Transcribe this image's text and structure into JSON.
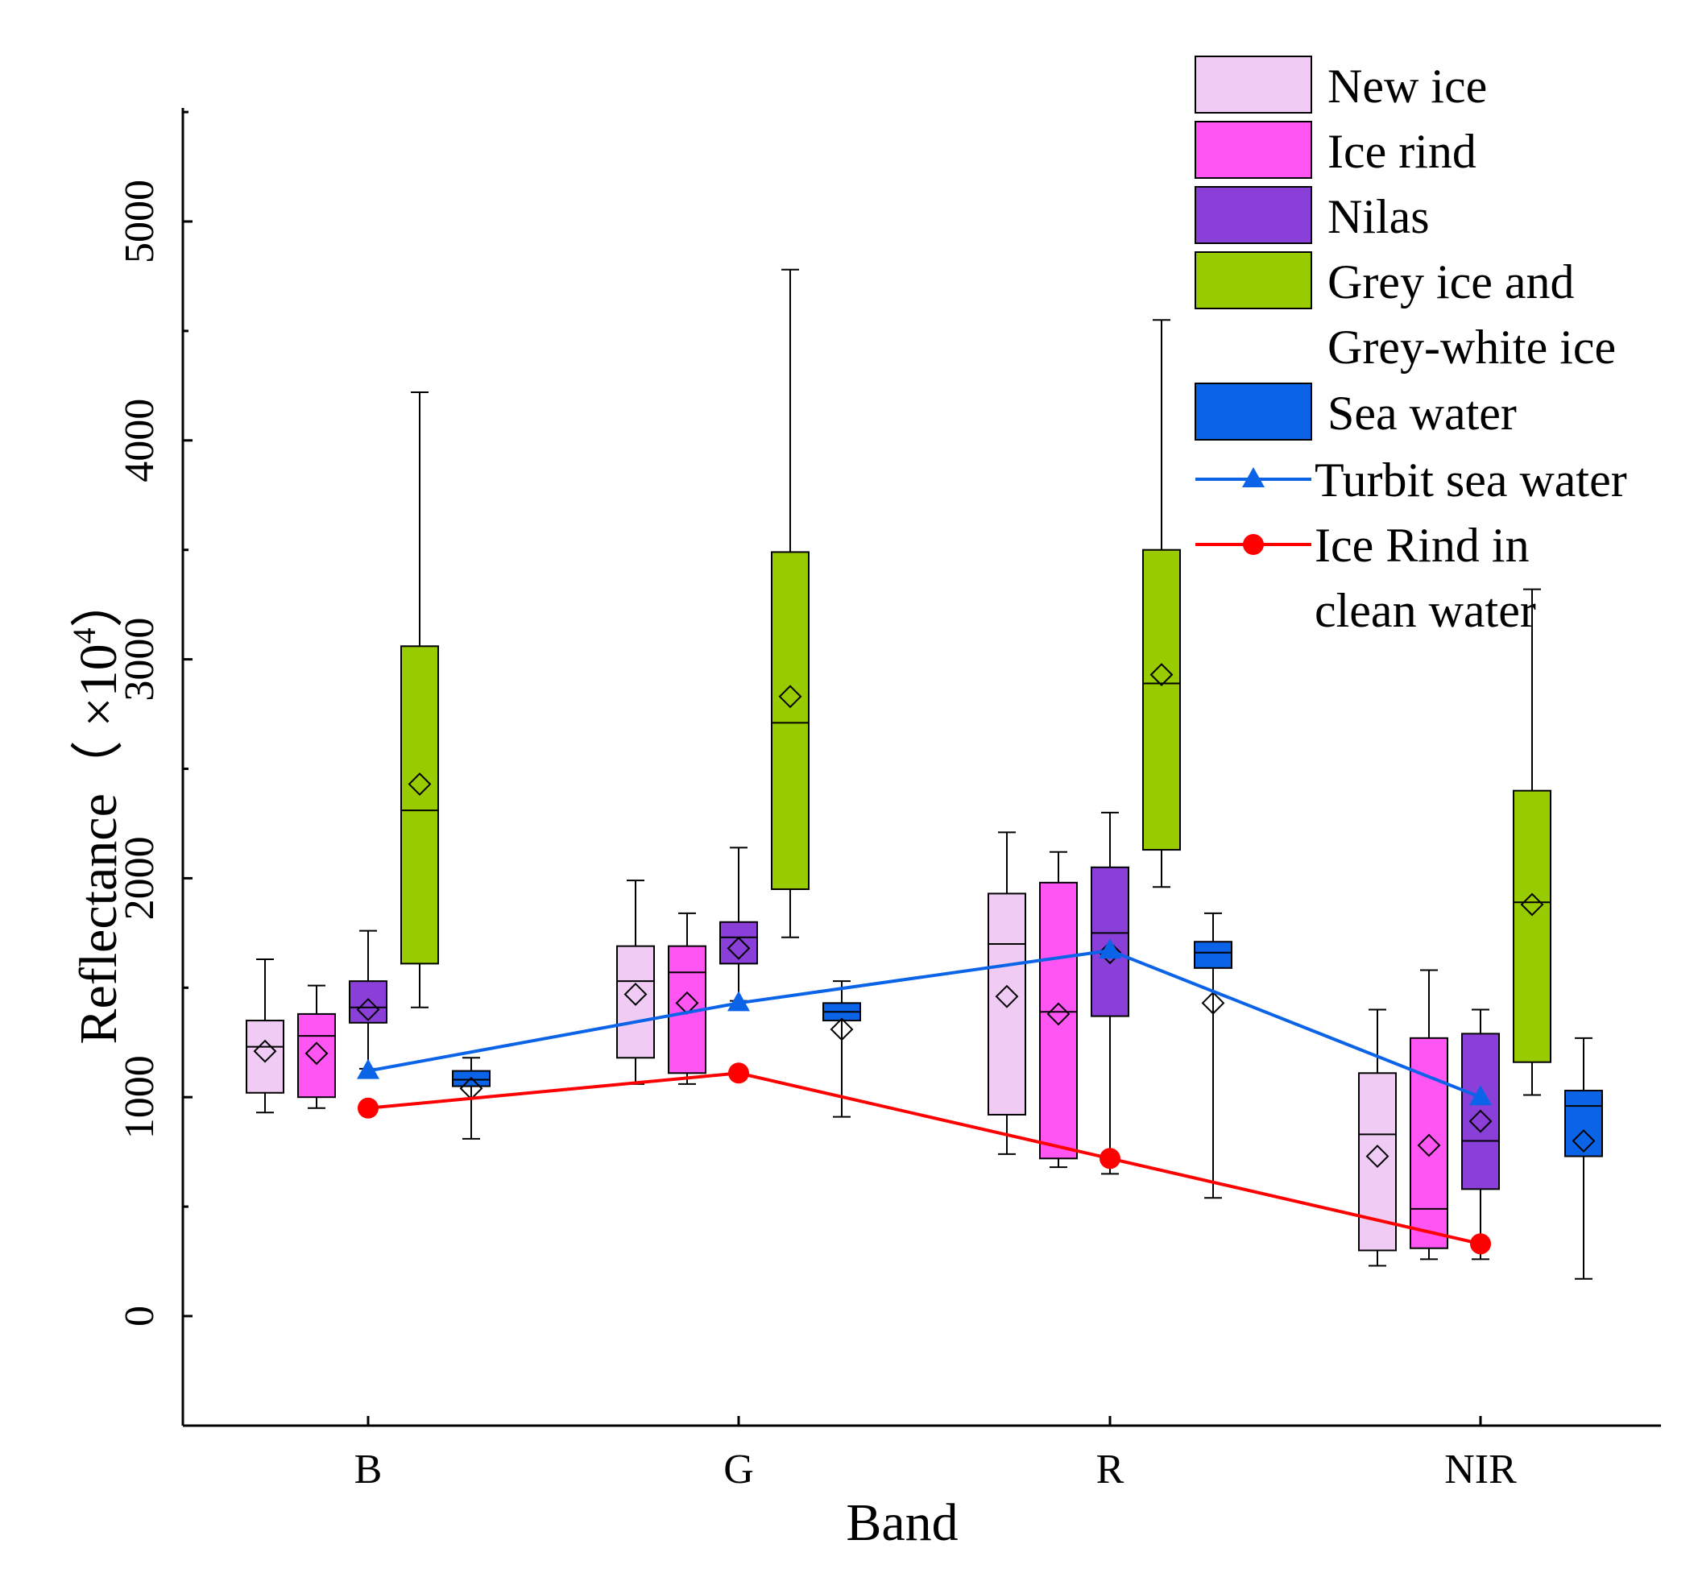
{
  "chart_data": {
    "type": "box",
    "xlabel": "Band",
    "ylabel": "Reflectance（ ×10",
    "ylabel_exponent": "4",
    "ylabel_suffix": "）",
    "categories": [
      "B",
      "G",
      "R",
      "NIR"
    ],
    "ylim": [
      -500,
      5500
    ],
    "yticks": [
      0,
      1000,
      2000,
      3000,
      4000,
      5000
    ],
    "y_minor_ticks": [
      500,
      1500,
      2500,
      3500,
      4500,
      5500
    ],
    "series": [
      {
        "name": "New ice",
        "color": "#f0ccf5",
        "boxes": [
          {
            "min": 930,
            "q1": 1020,
            "median": 1230,
            "q3": 1350,
            "max": 1630,
            "mean": 1210
          },
          {
            "min": 1060,
            "q1": 1180,
            "median": 1530,
            "q3": 1690,
            "max": 1990,
            "mean": 1470
          },
          {
            "min": 740,
            "q1": 920,
            "median": 1700,
            "q3": 1930,
            "max": 2210,
            "mean": 1460
          },
          {
            "min": 230,
            "q1": 300,
            "median": 830,
            "q3": 1110,
            "max": 1400,
            "mean": 730
          }
        ]
      },
      {
        "name": "Ice rind",
        "color": "#ff55f3",
        "boxes": [
          {
            "min": 950,
            "q1": 1000,
            "median": 1280,
            "q3": 1380,
            "max": 1510,
            "mean": 1200
          },
          {
            "min": 1060,
            "q1": 1110,
            "median": 1570,
            "q3": 1690,
            "max": 1840,
            "mean": 1430
          },
          {
            "min": 680,
            "q1": 720,
            "median": 1390,
            "q3": 1980,
            "max": 2120,
            "mean": 1380
          },
          {
            "min": 260,
            "q1": 310,
            "median": 490,
            "q3": 1270,
            "max": 1580,
            "mean": 780
          }
        ]
      },
      {
        "name": "Nilas",
        "color": "#8a3fd8",
        "boxes": [
          {
            "min": 1130,
            "q1": 1340,
            "median": 1410,
            "q3": 1530,
            "max": 1760,
            "mean": 1400
          },
          {
            "min": 1440,
            "q1": 1610,
            "median": 1730,
            "q3": 1800,
            "max": 2140,
            "mean": 1680
          },
          {
            "min": 650,
            "q1": 1370,
            "median": 1750,
            "q3": 2050,
            "max": 2300,
            "mean": 1660
          },
          {
            "min": 260,
            "q1": 580,
            "median": 800,
            "q3": 1290,
            "max": 1400,
            "mean": 890
          }
        ]
      },
      {
        "name": "Grey ice and\nGrey-white ice",
        "label_line1": "Grey ice and",
        "label_line2": "Grey-white ice",
        "color": "#99cc00",
        "boxes": [
          {
            "min": 1410,
            "q1": 1610,
            "median": 2310,
            "q3": 3060,
            "max": 4220,
            "mean": 2430
          },
          {
            "min": 1730,
            "q1": 1950,
            "median": 2710,
            "q3": 3490,
            "max": 4780,
            "mean": 2830
          },
          {
            "min": 1960,
            "q1": 2130,
            "median": 2890,
            "q3": 3500,
            "max": 4550,
            "mean": 2930
          },
          {
            "min": 1010,
            "q1": 1160,
            "median": 1890,
            "q3": 2400,
            "max": 3320,
            "mean": 1880
          }
        ]
      },
      {
        "name": "Sea water",
        "color": "#0b63e8",
        "boxes": [
          {
            "min": 810,
            "q1": 1050,
            "median": 1080,
            "q3": 1120,
            "max": 1180,
            "mean": 1040
          },
          {
            "min": 910,
            "q1": 1350,
            "median": 1390,
            "q3": 1430,
            "max": 1530,
            "mean": 1310
          },
          {
            "min": 540,
            "q1": 1590,
            "median": 1660,
            "q3": 1710,
            "max": 1840,
            "mean": 1430
          },
          {
            "min": 170,
            "q1": 730,
            "median": 960,
            "q3": 1030,
            "max": 1270,
            "mean": 800
          }
        ]
      }
    ],
    "lines": [
      {
        "name": "Turbit sea water",
        "color": "#0b63e8",
        "marker": "triangle",
        "values": [
          1120,
          1430,
          1670,
          1000
        ]
      },
      {
        "name": "Ice Rind in\nclean water",
        "label_line1": "Ice Rind in",
        "label_line2": "clean water",
        "color": "#ff0000",
        "marker": "circle",
        "values": [
          950,
          1110,
          720,
          330
        ]
      }
    ]
  }
}
